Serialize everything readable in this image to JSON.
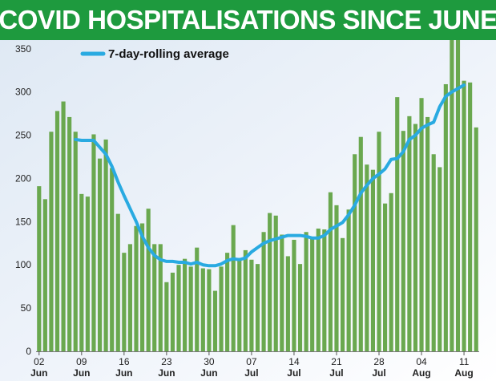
{
  "title": "COVID HOSPITALISATIONS SINCE JUNE",
  "colors": {
    "title_background": "#1e9a3e",
    "bar": "#6aa84f",
    "line": "#29aae1",
    "background_tint": "#e4eef8"
  },
  "chart_data": {
    "type": "bar",
    "title": "COVID HOSPITALISATIONS SINCE JUNE",
    "xlabel": "",
    "ylabel": "",
    "ylim": [
      0,
      360
    ],
    "yticks": [
      0,
      50,
      100,
      150,
      200,
      250,
      300,
      350
    ],
    "grid": false,
    "legend_placement": "top-left",
    "x_tick_labels": [
      {
        "day": "02",
        "month": "Jun"
      },
      {
        "day": "09",
        "month": "Jun"
      },
      {
        "day": "16",
        "month": "Jun"
      },
      {
        "day": "23",
        "month": "Jun"
      },
      {
        "day": "30",
        "month": "Jun"
      },
      {
        "day": "07",
        "month": "Jul"
      },
      {
        "day": "14",
        "month": "Jul"
      },
      {
        "day": "21",
        "month": "Jul"
      },
      {
        "day": "28",
        "month": "Jul"
      },
      {
        "day": "04",
        "month": "Aug"
      },
      {
        "day": "11",
        "month": "Aug"
      }
    ],
    "x_tick_indices": [
      0,
      7,
      14,
      21,
      28,
      35,
      42,
      49,
      56,
      63,
      70
    ],
    "series": [
      {
        "values": [
          191,
          176,
          254,
          278,
          289,
          271,
          254,
          182,
          179,
          251,
          223,
          245,
          212,
          159,
          114,
          124,
          145,
          148,
          165,
          124,
          124,
          80,
          91,
          100,
          107,
          98,
          120,
          96,
          95,
          70,
          98,
          114,
          146,
          108,
          117,
          106,
          101,
          138,
          160,
          157,
          135,
          110,
          129,
          101,
          138,
          132,
          142,
          141,
          184,
          169,
          131,
          164,
          228,
          248,
          216,
          210,
          254,
          171,
          183,
          294,
          255,
          272,
          263,
          293,
          271,
          228,
          213,
          309,
          362,
          360,
          313,
          311,
          259
        ]
      },
      {
        "name": "7-day-rolling average",
        "type": "line",
        "start_index": 6,
        "values": [
          245,
          244,
          244,
          244,
          236,
          228,
          214,
          196,
          180,
          165,
          150,
          133,
          120,
          111,
          106,
          104,
          104,
          103,
          103,
          101,
          103,
          100,
          99,
          99,
          101,
          105,
          107,
          106,
          108,
          115,
          120,
          125,
          128,
          130,
          132,
          134,
          134,
          134,
          133,
          131,
          131,
          134,
          141,
          145,
          149,
          158,
          169,
          183,
          192,
          200,
          205,
          211,
          222,
          223,
          231,
          245,
          250,
          258,
          262,
          265,
          283,
          295,
          300,
          304,
          308
        ]
      }
    ]
  }
}
